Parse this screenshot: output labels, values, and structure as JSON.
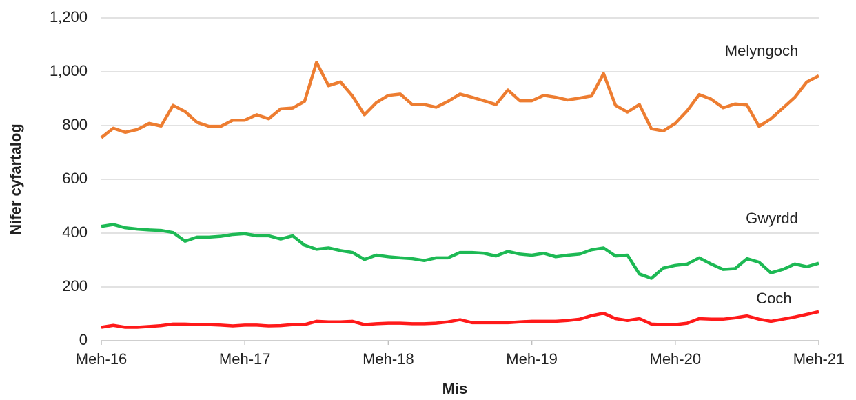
{
  "chart_data": {
    "type": "line",
    "xlabel": "Mis",
    "ylabel": "Nifer cyfartalog",
    "categories": [
      "Meh-16",
      null,
      null,
      null,
      null,
      null,
      null,
      null,
      null,
      null,
      null,
      null,
      "Meh-17",
      null,
      null,
      null,
      null,
      null,
      null,
      null,
      null,
      null,
      null,
      null,
      "Meh-18",
      null,
      null,
      null,
      null,
      null,
      null,
      null,
      null,
      null,
      null,
      null,
      "Meh-19",
      null,
      null,
      null,
      null,
      null,
      null,
      null,
      null,
      null,
      null,
      null,
      "Meh-20",
      null,
      null,
      null,
      null,
      null,
      null,
      null,
      null,
      null,
      null,
      null,
      "Meh-21"
    ],
    "series": [
      {
        "name": "Melyngoch",
        "color": "#ed7d31",
        "values": [
          755,
          790,
          775,
          785,
          808,
          798,
          875,
          852,
          812,
          797,
          797,
          820,
          820,
          840,
          825,
          862,
          865,
          890,
          1035,
          948,
          962,
          910,
          840,
          885,
          912,
          917,
          878,
          878,
          868,
          890,
          917,
          905,
          892,
          878,
          932,
          892,
          892,
          912,
          905,
          895,
          902,
          910,
          993,
          875,
          850,
          878,
          788,
          780,
          808,
          855,
          915,
          898,
          866,
          880,
          876,
          797,
          825,
          865,
          905,
          962,
          985
        ]
      },
      {
        "name": "Gwyrdd",
        "color": "#1db954",
        "values": [
          425,
          432,
          420,
          415,
          412,
          410,
          402,
          370,
          385,
          385,
          388,
          395,
          398,
          390,
          390,
          378,
          390,
          355,
          340,
          345,
          335,
          328,
          302,
          318,
          312,
          308,
          305,
          298,
          308,
          308,
          328,
          328,
          325,
          315,
          332,
          322,
          318,
          325,
          312,
          318,
          322,
          338,
          345,
          315,
          318,
          248,
          232,
          270,
          280,
          285,
          308,
          285,
          265,
          268,
          305,
          292,
          252,
          265,
          285,
          275,
          288
        ]
      },
      {
        "name": "Coch",
        "color": "#ff1a1a",
        "values": [
          50,
          57,
          50,
          50,
          53,
          56,
          62,
          62,
          60,
          60,
          58,
          55,
          58,
          58,
          55,
          56,
          60,
          60,
          72,
          70,
          70,
          72,
          60,
          63,
          65,
          65,
          63,
          63,
          65,
          70,
          78,
          67,
          67,
          67,
          67,
          70,
          72,
          72,
          72,
          75,
          80,
          93,
          102,
          82,
          75,
          82,
          62,
          60,
          60,
          65,
          82,
          80,
          80,
          85,
          92,
          80,
          72,
          80,
          88,
          98,
          108
        ]
      }
    ],
    "ylim": [
      0,
      1200
    ],
    "yticks": [
      0,
      200,
      400,
      600,
      800,
      {
        "value": 1000,
        "label": "1,000"
      },
      {
        "value": 1200,
        "label": "1,200"
      }
    ],
    "grid": true
  }
}
